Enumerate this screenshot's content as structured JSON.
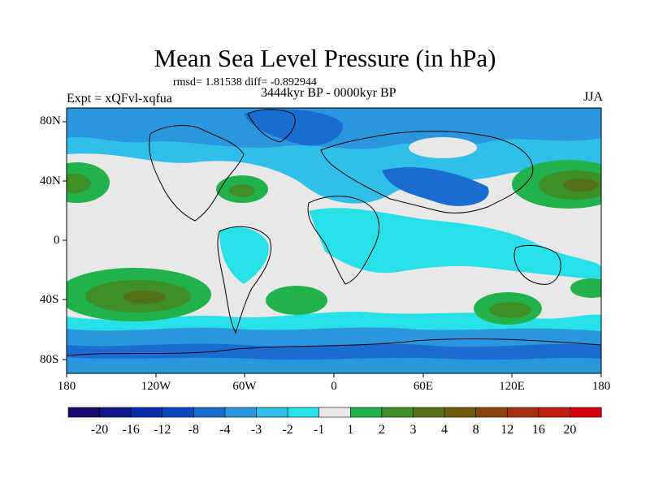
{
  "title": "Mean Sea Level Pressure (in hPa)",
  "stats": "rmsd= 1.81538 diff= -0.892944",
  "left_label": "Expt = xQFvl-xqfua",
  "center_label": "3444kyr BP - 0000kyr BP",
  "right_label": "JJA",
  "lat_labels": [
    "80N",
    "40N",
    "0",
    "40S",
    "80S"
  ],
  "lon_labels": [
    "180",
    "120W",
    "60W",
    "0",
    "60E",
    "120E",
    "180"
  ],
  "colorbar": {
    "colors": [
      "#1a0a6e",
      "#10188a",
      "#0a2eaa",
      "#0a48c0",
      "#1a6cd0",
      "#2a96de",
      "#30bfe8",
      "#28e0e8",
      "#e8e8e8",
      "#22b24c",
      "#3e8f28",
      "#557116",
      "#6b5c08",
      "#8a4410",
      "#a83012",
      "#c02010",
      "#d8000a"
    ],
    "labels": [
      "-20",
      "-16",
      "-12",
      "-8",
      "-4",
      "-3",
      "-2",
      "-1",
      "1",
      "2",
      "3",
      "4",
      "8",
      "12",
      "16",
      "20"
    ]
  },
  "map": {
    "background_color": "#e8e8e8",
    "regions": [
      {
        "name": "polar-negative-band",
        "color": "#2a96de"
      },
      {
        "name": "southern-deep-negative-band",
        "color": "#1a6cd0"
      },
      {
        "name": "positive-high-north-pacific",
        "color": "#22b24c"
      },
      {
        "name": "positive-high-south-pacific",
        "color": "#22b24c"
      },
      {
        "name": "positive-high-south-atlantic",
        "color": "#22b24c"
      },
      {
        "name": "positive-high-indian-ocean",
        "color": "#22b24c"
      },
      {
        "name": "positive-high-north-atlantic",
        "color": "#22b24c"
      }
    ]
  }
}
